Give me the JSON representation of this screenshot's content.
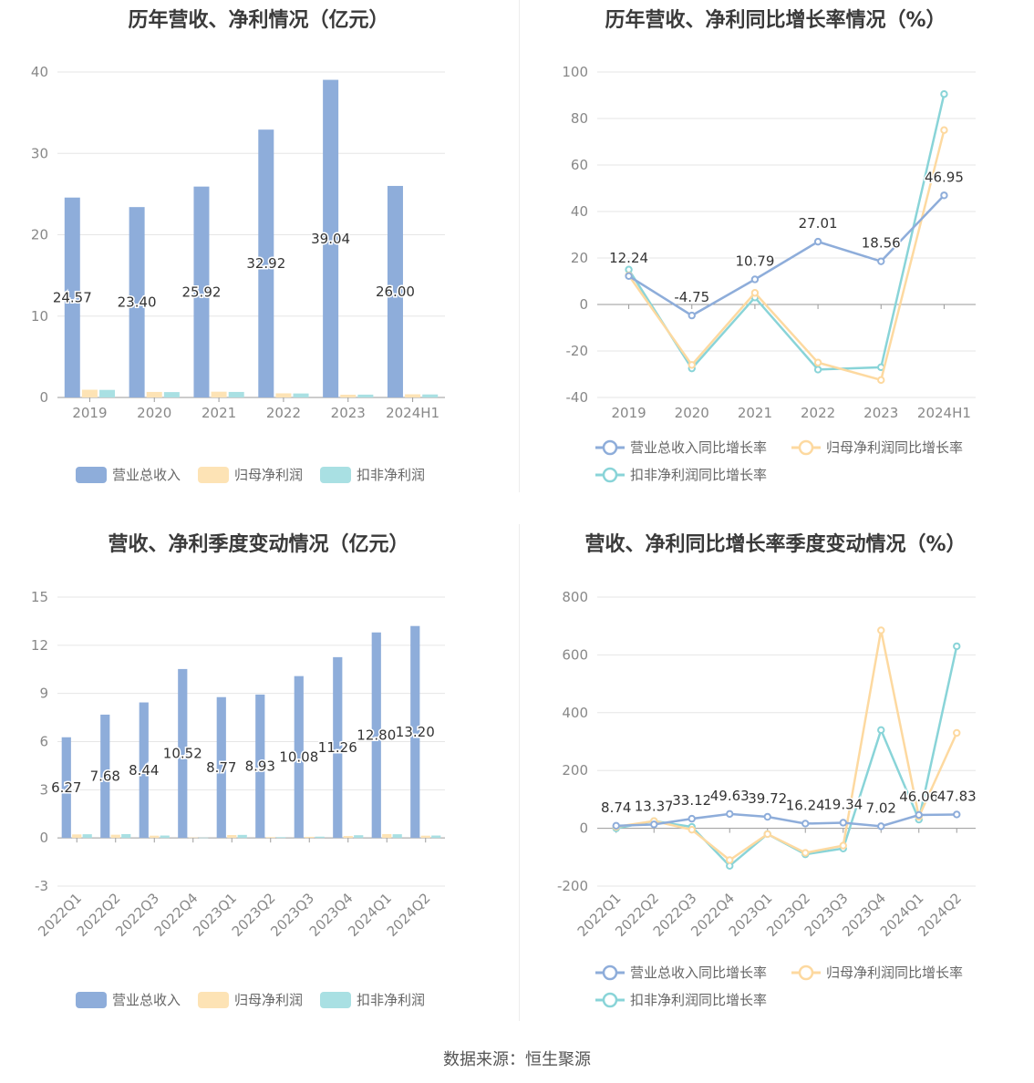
{
  "source_note": "数据来源：恒生聚源",
  "colors": {
    "revenue": "#8eadda",
    "net_profit": "#fde3b5",
    "deducted_profit": "#a9e0e3",
    "revenue_line": "#8eadda",
    "net_line": "#fdd9a0",
    "deducted_line": "#89d4d8"
  },
  "chart_data": [
    {
      "type": "bar",
      "title": "历年营收、净利情况（亿元）",
      "categories": [
        "2019",
        "2020",
        "2021",
        "2022",
        "2023",
        "2024H1"
      ],
      "ylim": [
        0,
        40
      ],
      "yticks": [
        0,
        10,
        20,
        30,
        40
      ],
      "grid": true,
      "legend": "bottom",
      "series": [
        {
          "name": "营业总收入",
          "values": [
            24.57,
            23.4,
            25.92,
            32.92,
            39.04,
            26.0
          ],
          "labels": [
            "24.57",
            "23.40",
            "25.92",
            "32.92",
            "39.04",
            "26.00"
          ]
        },
        {
          "name": "归母净利润",
          "values": [
            0.95,
            0.68,
            0.71,
            0.51,
            0.34,
            0.39
          ]
        },
        {
          "name": "扣非净利润",
          "values": [
            0.93,
            0.66,
            0.68,
            0.49,
            0.35,
            0.37
          ]
        }
      ]
    },
    {
      "type": "line",
      "title": "历年营收、净利同比增长率情况（%）",
      "categories": [
        "2019",
        "2020",
        "2021",
        "2022",
        "2023",
        "2024H1"
      ],
      "ylim": [
        -40,
        100
      ],
      "yticks": [
        -40,
        -20,
        0,
        20,
        40,
        60,
        80,
        100
      ],
      "grid": true,
      "legend": "bottom",
      "series": [
        {
          "name": "营业总收入同比增长率",
          "values": [
            12.24,
            -4.75,
            10.79,
            27.01,
            18.56,
            46.95
          ],
          "labels": [
            "12.24",
            "-4.75",
            "10.79",
            "27.01",
            "18.56",
            "46.95"
          ]
        },
        {
          "name": "归母净利润同比增长率",
          "values": [
            12.5,
            -26.0,
            5.0,
            -25.0,
            -32.5,
            75.0
          ]
        },
        {
          "name": "扣非净利润同比增长率",
          "values": [
            15.0,
            -27.5,
            3.0,
            -28.0,
            -27.0,
            90.5
          ]
        }
      ]
    },
    {
      "type": "bar",
      "title": "营收、净利季度变动情况（亿元）",
      "categories": [
        "2022Q1",
        "2022Q2",
        "2022Q3",
        "2022Q4",
        "2023Q1",
        "2023Q2",
        "2023Q3",
        "2023Q4",
        "2024Q1",
        "2024Q2"
      ],
      "ylim": [
        -3,
        15
      ],
      "yticks": [
        -3,
        0,
        3,
        6,
        9,
        12,
        15
      ],
      "grid": true,
      "legend": "bottom",
      "series": [
        {
          "name": "营业总收入",
          "values": [
            6.27,
            7.68,
            8.44,
            10.52,
            8.77,
            8.93,
            10.08,
            11.26,
            12.8,
            13.2
          ],
          "labels": [
            "6.27",
            "7.68",
            "8.44",
            "10.52",
            "8.77",
            "8.93",
            "10.08",
            "11.26",
            "12.80",
            "13.20"
          ]
        },
        {
          "name": "归母净利润",
          "values": [
            0.22,
            0.2,
            0.14,
            0.03,
            0.18,
            0.05,
            0.07,
            0.12,
            0.24,
            0.14
          ]
        },
        {
          "name": "扣非净利润",
          "values": [
            0.23,
            0.24,
            0.15,
            0.02,
            0.19,
            0.05,
            0.08,
            0.17,
            0.23,
            0.15
          ]
        }
      ]
    },
    {
      "type": "line",
      "title": "营收、净利同比增长率季度变动情况（%）",
      "categories": [
        "2022Q1",
        "2022Q2",
        "2022Q3",
        "2022Q4",
        "2023Q1",
        "2023Q2",
        "2023Q3",
        "2023Q4",
        "2024Q1",
        "2024Q2"
      ],
      "ylim": [
        -200,
        800
      ],
      "yticks": [
        -200,
        0,
        200,
        400,
        600,
        800
      ],
      "grid": true,
      "legend": "bottom",
      "series": [
        {
          "name": "营业总收入同比增长率",
          "values": [
            8.74,
            13.37,
            33.12,
            49.63,
            39.72,
            16.24,
            19.34,
            7.02,
            46.06,
            47.83
          ],
          "labels": [
            "8.74",
            "13.37",
            "33.12",
            "49.63",
            "39.72",
            "16.24",
            "19.34",
            "7.02",
            "46.06",
            "47.83"
          ]
        },
        {
          "name": "归母净利润同比增长率",
          "values": [
            5,
            25,
            -5,
            -110,
            -20,
            -85,
            -60,
            685,
            40,
            330
          ]
        },
        {
          "name": "扣非净利润同比增长率",
          "values": [
            0,
            25,
            5,
            -130,
            -20,
            -90,
            -70,
            340,
            30,
            630
          ]
        }
      ]
    }
  ]
}
